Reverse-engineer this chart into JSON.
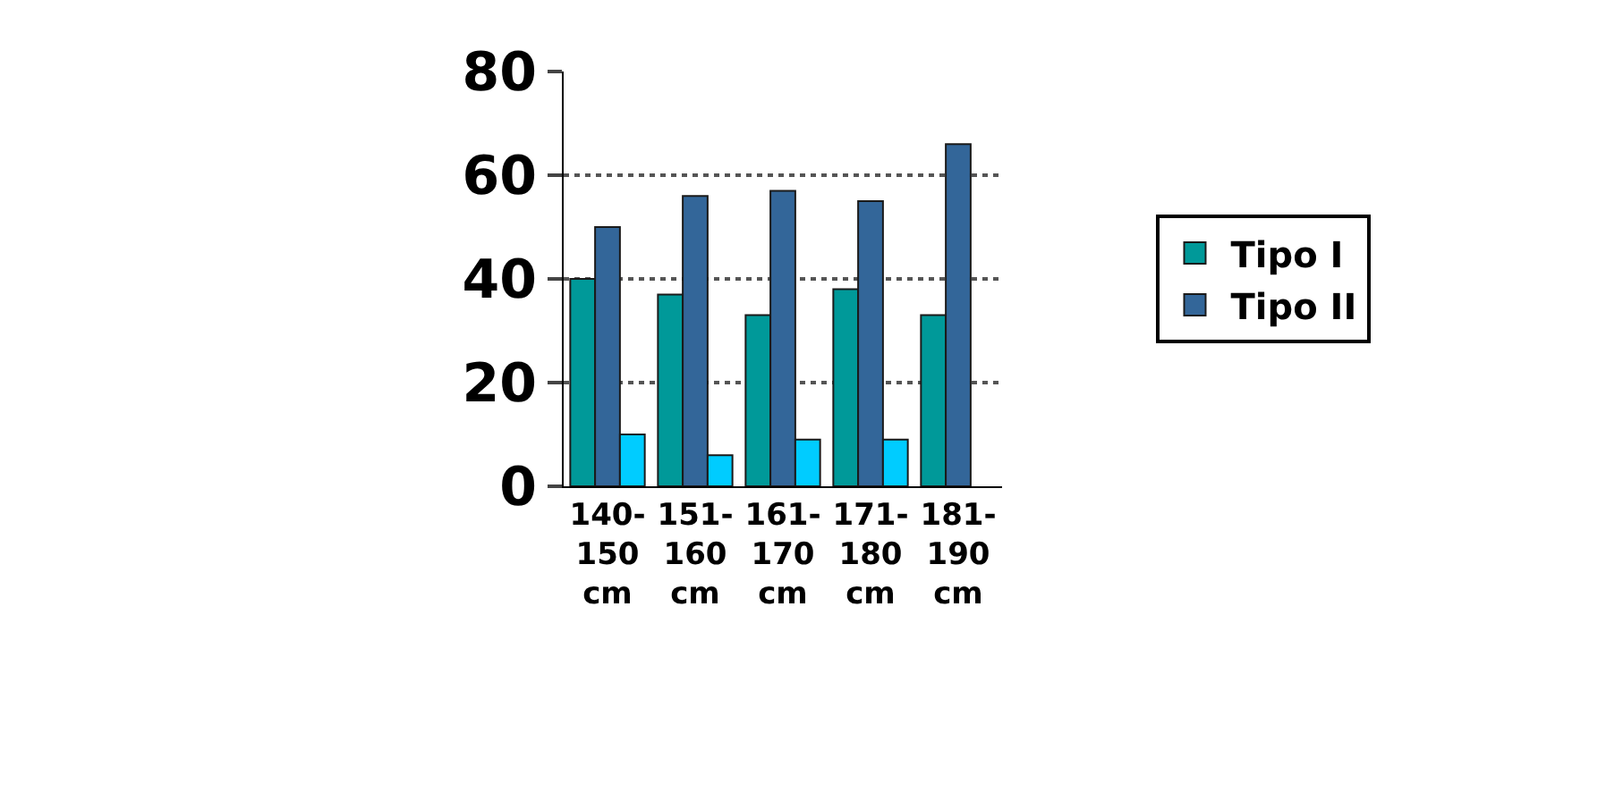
{
  "chart_data": {
    "type": "bar",
    "categories": [
      "140-150 cm",
      "151-160 cm",
      "161-170 cm",
      "171-180 cm",
      "181-190 cm"
    ],
    "series": [
      {
        "name": "Tipo I",
        "color": "#009999",
        "values": [
          40,
          37,
          33,
          38,
          33
        ]
      },
      {
        "name": "Tipo II",
        "color": "#336699",
        "values": [
          50,
          56,
          57,
          55,
          66
        ]
      },
      {
        "color": "#00ccff",
        "values": [
          10,
          6,
          9,
          9,
          null
        ]
      }
    ],
    "ylim": [
      0,
      80
    ],
    "yticks": [
      0,
      20,
      40,
      60,
      80
    ],
    "grid": "y",
    "legend": "right"
  }
}
